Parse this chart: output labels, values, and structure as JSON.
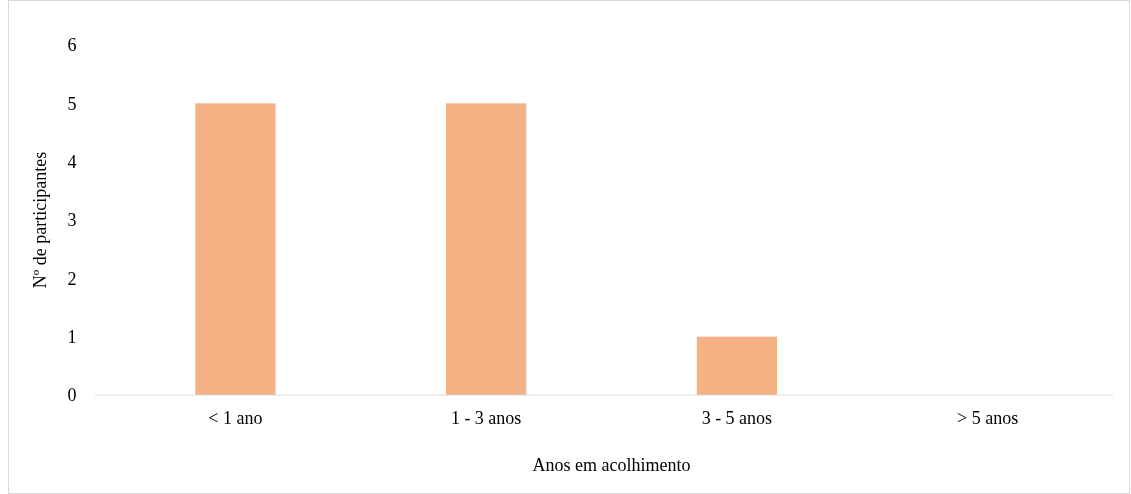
{
  "chart_data": {
    "type": "bar",
    "xlabel": "Anos em acolhimento",
    "ylabel": "Nº de participantes",
    "categories": [
      "< 1 ano",
      "1 - 3 anos",
      "3 - 5 anos",
      "> 5 anos"
    ],
    "values": [
      5,
      5,
      1,
      0
    ],
    "color": "#f4b183",
    "ylim": [
      0,
      6
    ],
    "yticks": [
      0,
      1,
      2,
      3,
      4,
      5,
      6
    ],
    "grid": false
  }
}
